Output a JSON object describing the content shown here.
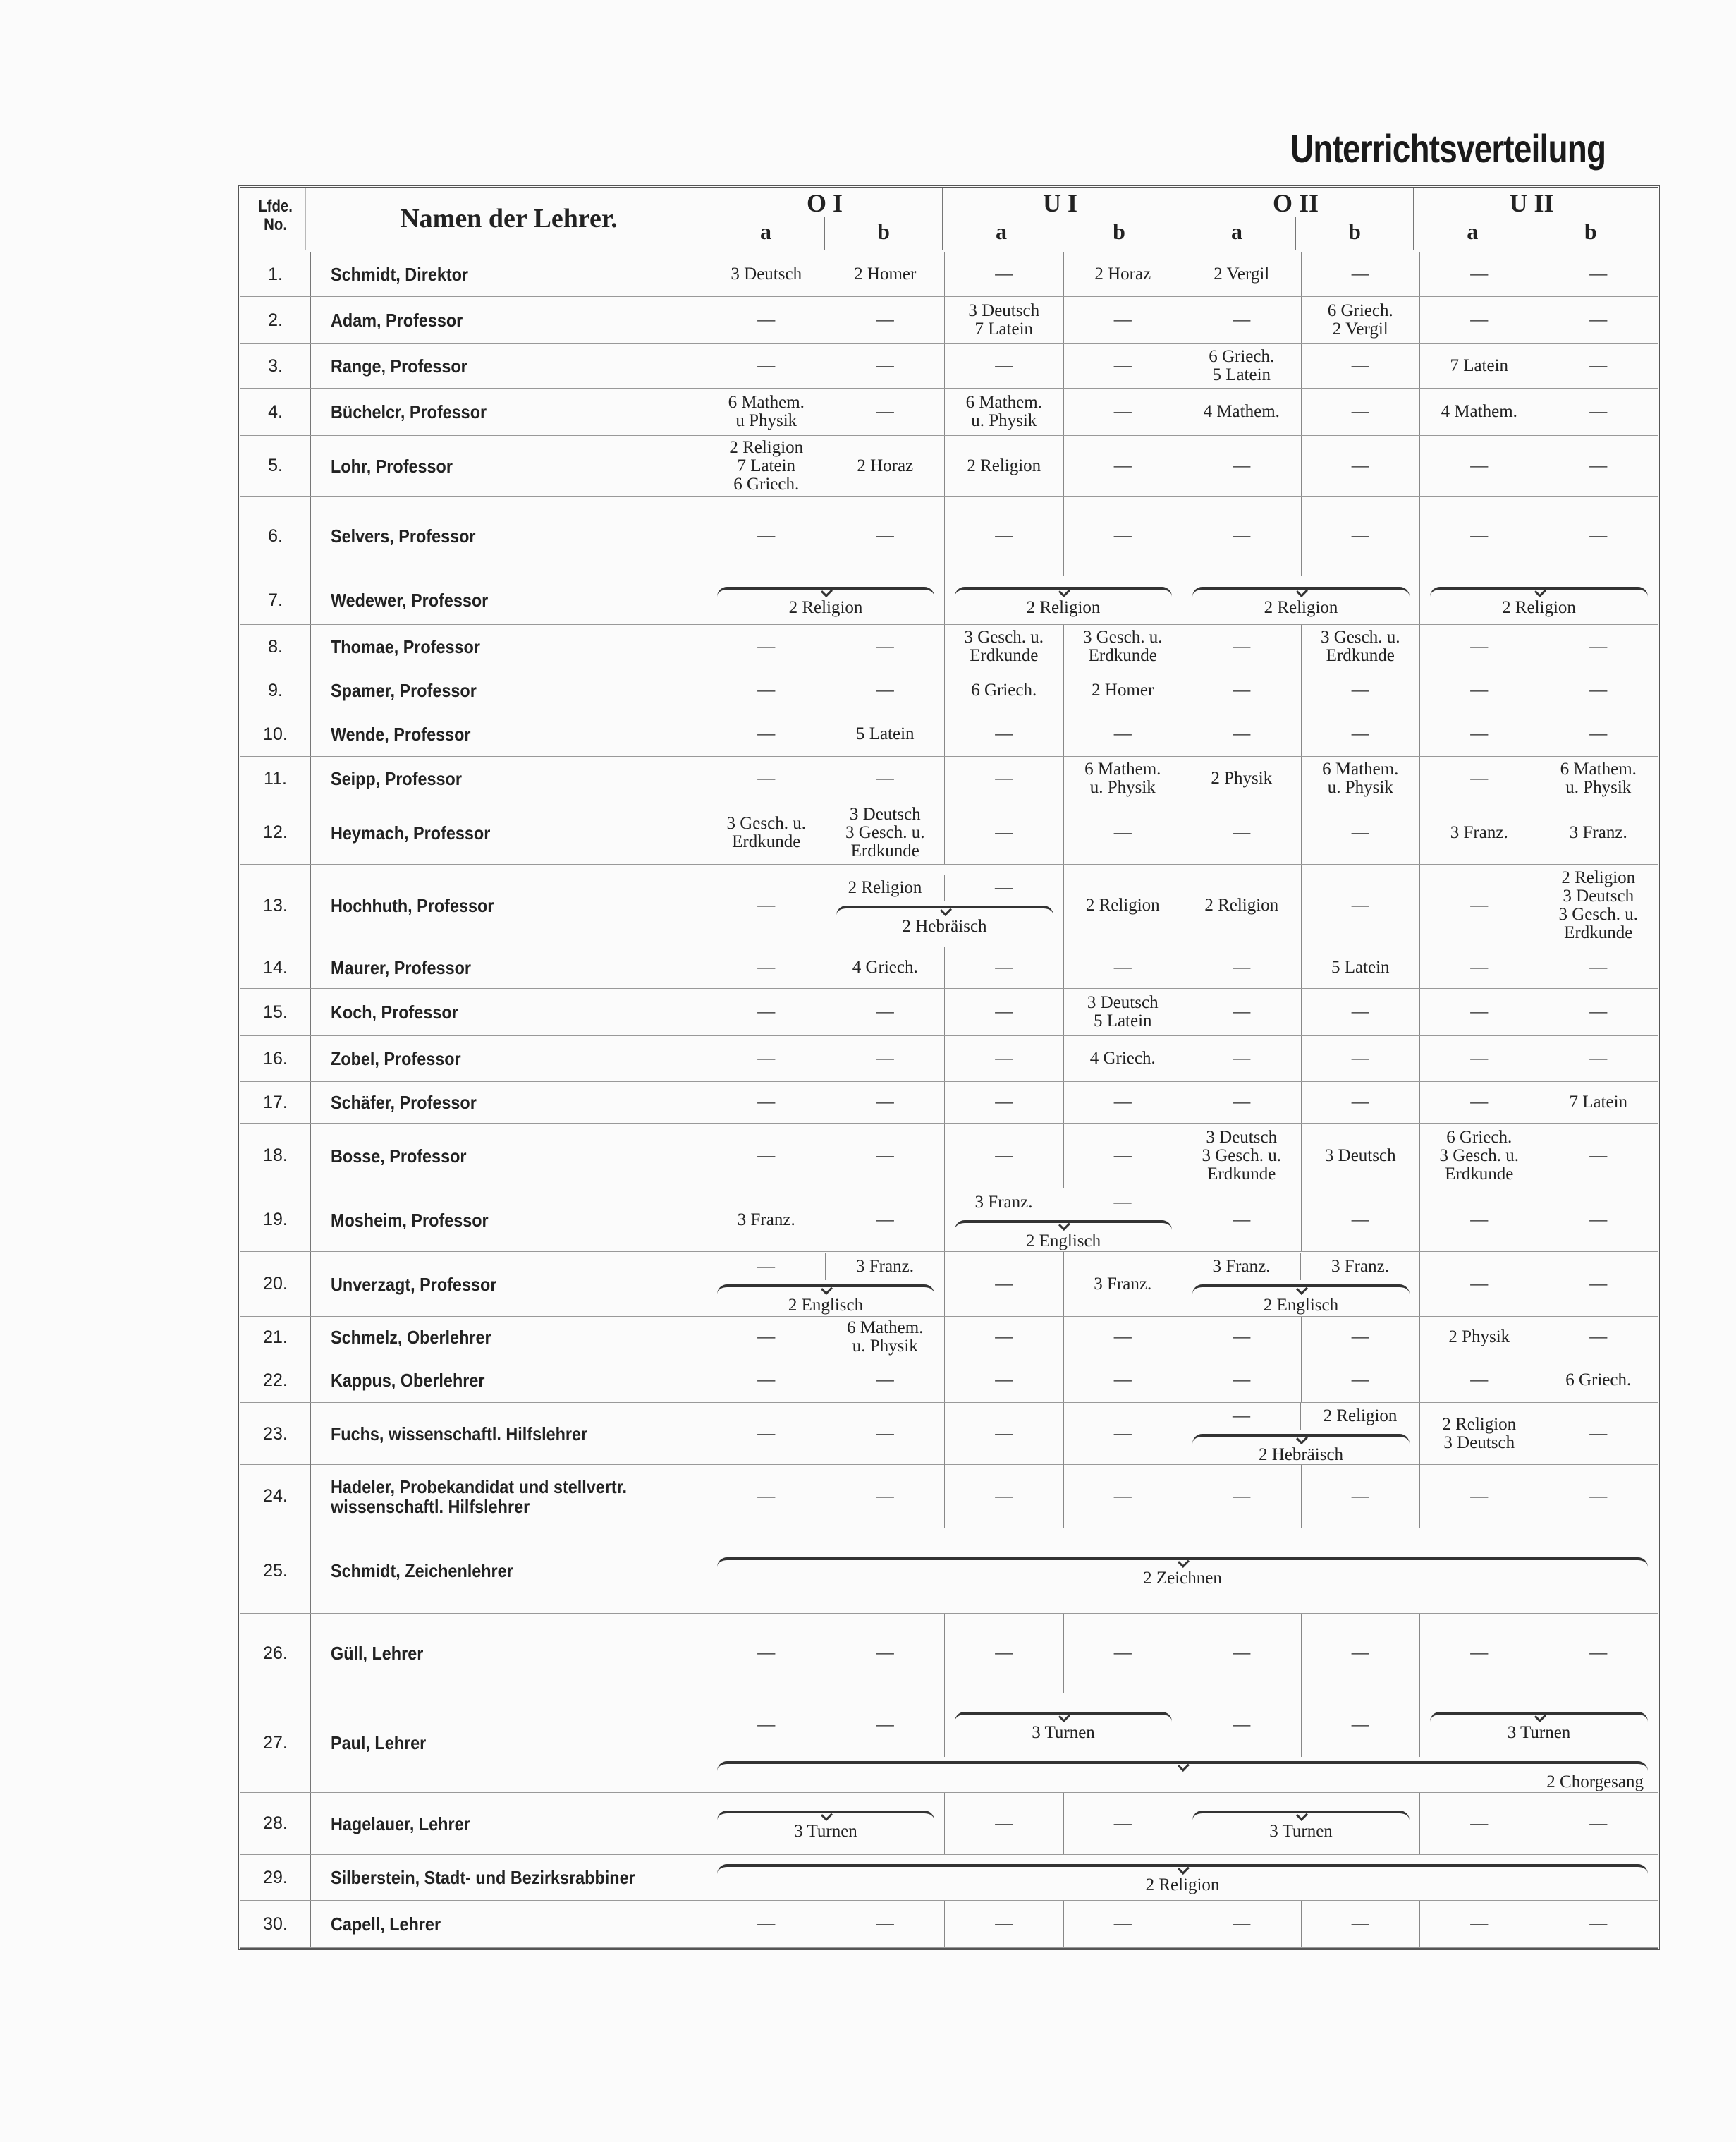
{
  "title": "Unterrichtsverteilung",
  "header": {
    "no": "Lfde.\nNo.",
    "name": "Namen der Lehrer.",
    "groups": [
      {
        "name": "O I",
        "subs": [
          "a",
          "b"
        ]
      },
      {
        "name": "U I",
        "subs": [
          "a",
          "b"
        ]
      },
      {
        "name": "O II",
        "subs": [
          "a",
          "b"
        ]
      },
      {
        "name": "U II",
        "subs": [
          "a",
          "b"
        ]
      }
    ]
  },
  "rows": [
    {
      "no": "1.",
      "name": "Schmidt, Direktor",
      "segs": [
        {
          "t": "3 Deutsch"
        },
        {
          "t": "2 Homer"
        },
        {
          "t": "—"
        },
        {
          "t": "2 Horaz"
        },
        {
          "t": "2 Vergil"
        },
        {
          "t": "—"
        },
        {
          "t": "—"
        },
        {
          "t": "—"
        }
      ]
    },
    {
      "no": "2.",
      "name": "Adam, Professor",
      "segs": [
        {
          "t": "—"
        },
        {
          "t": "—"
        },
        {
          "t": "3 Deutsch\n7 Latein"
        },
        {
          "t": "—"
        },
        {
          "t": "—"
        },
        {
          "t": "6 Griech.\n2 Vergil"
        },
        {
          "t": "—"
        },
        {
          "t": "—"
        }
      ]
    },
    {
      "no": "3.",
      "name": "Range, Professor",
      "segs": [
        {
          "t": "—"
        },
        {
          "t": "—"
        },
        {
          "t": "—"
        },
        {
          "t": "—"
        },
        {
          "t": "6 Griech.\n5 Latein"
        },
        {
          "t": "—"
        },
        {
          "t": "7 Latein"
        },
        {
          "t": "—"
        }
      ]
    },
    {
      "no": "4.",
      "name": "Büchelcr, Professor",
      "segs": [
        {
          "t": "6 Mathem.\nu Physik"
        },
        {
          "t": "—"
        },
        {
          "t": "6 Mathem.\nu. Physik"
        },
        {
          "t": "—"
        },
        {
          "t": "4 Mathem."
        },
        {
          "t": "—"
        },
        {
          "t": "4 Mathem."
        },
        {
          "t": "—"
        }
      ]
    },
    {
      "no": "5.",
      "name": "Lohr, Professor",
      "segs": [
        {
          "t": "2 Religion\n7 Latein\n6 Griech."
        },
        {
          "t": "2 Horaz"
        },
        {
          "t": "2 Religion"
        },
        {
          "t": "—"
        },
        {
          "t": "—"
        },
        {
          "t": "—"
        },
        {
          "t": "—"
        },
        {
          "t": "—"
        }
      ]
    },
    {
      "no": "6.",
      "name": "Selvers, Professor",
      "segs": [
        {
          "t": "—"
        },
        {
          "t": "—"
        },
        {
          "t": "—"
        },
        {
          "t": "—"
        },
        {
          "t": "—"
        },
        {
          "t": "—"
        },
        {
          "t": "—"
        },
        {
          "t": "—"
        }
      ]
    },
    {
      "no": "7.",
      "name": "Wedewer, Professor",
      "segs": [
        {
          "cols": 2,
          "brace": "2 Religion"
        },
        {
          "cols": 2,
          "brace": "2 Religion"
        },
        {
          "cols": 2,
          "brace": "2 Religion"
        },
        {
          "cols": 2,
          "brace": "2 Religion"
        }
      ]
    },
    {
      "no": "8.",
      "name": "Thomae, Professor",
      "segs": [
        {
          "t": "—"
        },
        {
          "t": "—"
        },
        {
          "t": "3 Gesch. u.\nErdkunde"
        },
        {
          "t": "3 Gesch. u.\nErdkunde"
        },
        {
          "t": "—"
        },
        {
          "t": "3 Gesch. u.\nErdkunde"
        },
        {
          "t": "—"
        },
        {
          "t": "—"
        }
      ]
    },
    {
      "no": "9.",
      "name": "Spamer, Professor",
      "segs": [
        {
          "t": "—"
        },
        {
          "t": "—"
        },
        {
          "t": "6 Griech."
        },
        {
          "t": "2 Homer"
        },
        {
          "t": "—"
        },
        {
          "t": "—"
        },
        {
          "t": "—"
        },
        {
          "t": "—"
        }
      ]
    },
    {
      "no": "10.",
      "name": "Wende, Professor",
      "segs": [
        {
          "t": "—"
        },
        {
          "t": "5 Latein"
        },
        {
          "t": "—"
        },
        {
          "t": "—"
        },
        {
          "t": "—"
        },
        {
          "t": "—"
        },
        {
          "t": "—"
        },
        {
          "t": "—"
        }
      ]
    },
    {
      "no": "11.",
      "name": "Seipp, Professor",
      "segs": [
        {
          "t": "—"
        },
        {
          "t": "—"
        },
        {
          "t": "—"
        },
        {
          "t": "6 Mathem.\nu. Physik"
        },
        {
          "t": "2 Physik"
        },
        {
          "t": "6 Mathem.\nu. Physik"
        },
        {
          "t": "—"
        },
        {
          "t": "6 Mathem.\nu. Physik"
        }
      ]
    },
    {
      "no": "12.",
      "name": "Heymach, Professor",
      "segs": [
        {
          "t": "3 Gesch. u.\nErdkunde"
        },
        {
          "t": "3 Deutsch\n3 Gesch. u.\nErdkunde"
        },
        {
          "t": "—"
        },
        {
          "t": "—"
        },
        {
          "t": "—"
        },
        {
          "t": "—"
        },
        {
          "t": "3 Franz."
        },
        {
          "t": "3 Franz."
        }
      ]
    },
    {
      "no": "13.",
      "name": "Hochhuth, Professor",
      "segs": [
        {
          "t": "—"
        },
        {
          "cols": 2,
          "upper": [
            "2 Religion",
            "—"
          ],
          "brace": "2 Hebräisch"
        },
        {
          "t": "2 Religion"
        },
        {
          "t": "2 Religion"
        },
        {
          "t": "—"
        },
        {
          "t": "—"
        },
        {
          "t": "2 Religion\n3 Deutsch\n3 Gesch. u.\nErdkunde"
        }
      ]
    },
    {
      "no": "14.",
      "name": "Maurer, Professor",
      "segs": [
        {
          "t": "—"
        },
        {
          "t": "4 Griech."
        },
        {
          "t": "—"
        },
        {
          "t": "—"
        },
        {
          "t": "—"
        },
        {
          "t": "5 Latein"
        },
        {
          "t": "—"
        },
        {
          "t": "—"
        }
      ]
    },
    {
      "no": "15.",
      "name": "Koch, Professor",
      "segs": [
        {
          "t": "—"
        },
        {
          "t": "—"
        },
        {
          "t": "—"
        },
        {
          "t": "3 Deutsch\n5 Latein"
        },
        {
          "t": "—"
        },
        {
          "t": "—"
        },
        {
          "t": "—"
        },
        {
          "t": "—"
        }
      ]
    },
    {
      "no": "16.",
      "name": "Zobel, Professor",
      "segs": [
        {
          "t": "—"
        },
        {
          "t": "—"
        },
        {
          "t": "—"
        },
        {
          "t": "4 Griech."
        },
        {
          "t": "—"
        },
        {
          "t": "—"
        },
        {
          "t": "—"
        },
        {
          "t": "—"
        }
      ]
    },
    {
      "no": "17.",
      "name": "Schäfer, Professor",
      "segs": [
        {
          "t": "—"
        },
        {
          "t": "—"
        },
        {
          "t": "—"
        },
        {
          "t": "—"
        },
        {
          "t": "—"
        },
        {
          "t": "—"
        },
        {
          "t": "—"
        },
        {
          "t": "7 Latein"
        }
      ]
    },
    {
      "no": "18.",
      "name": "Bosse, Professor",
      "segs": [
        {
          "t": "—"
        },
        {
          "t": "—"
        },
        {
          "t": "—"
        },
        {
          "t": "—"
        },
        {
          "t": "3 Deutsch\n3 Gesch. u.\nErdkunde"
        },
        {
          "t": "3 Deutsch"
        },
        {
          "t": "6 Griech.\n3 Gesch. u.\nErdkunde"
        },
        {
          "t": "—"
        }
      ]
    },
    {
      "no": "19.",
      "name": "Mosheim, Professor",
      "segs": [
        {
          "t": "3 Franz."
        },
        {
          "t": "—"
        },
        {
          "cols": 2,
          "upper": [
            "3 Franz.",
            "—"
          ],
          "brace": "2 Englisch"
        },
        {
          "t": "—"
        },
        {
          "t": "—"
        },
        {
          "t": "—"
        },
        {
          "t": "—"
        }
      ]
    },
    {
      "no": "20.",
      "name": "Unverzagt, Professor",
      "segs": [
        {
          "cols": 2,
          "upper": [
            "—",
            "3 Franz."
          ],
          "brace": "2 Englisch"
        },
        {
          "t": "—"
        },
        {
          "t": "3 Franz."
        },
        {
          "cols": 2,
          "upper": [
            "3 Franz.",
            "3 Franz."
          ],
          "brace": "2 Englisch"
        },
        {
          "t": "—"
        },
        {
          "t": "—"
        }
      ]
    },
    {
      "no": "21.",
      "name": "Schmelz, Oberlehrer",
      "segs": [
        {
          "t": "—"
        },
        {
          "t": "6 Mathem.\nu. Physik"
        },
        {
          "t": "—"
        },
        {
          "t": "—"
        },
        {
          "t": "—"
        },
        {
          "t": "—"
        },
        {
          "t": "2 Physik"
        },
        {
          "t": "—"
        }
      ]
    },
    {
      "no": "22.",
      "name": "Kappus, Oberlehrer",
      "segs": [
        {
          "t": "—"
        },
        {
          "t": "—"
        },
        {
          "t": "—"
        },
        {
          "t": "—"
        },
        {
          "t": "—"
        },
        {
          "t": "—"
        },
        {
          "t": "—"
        },
        {
          "t": "6 Griech."
        }
      ]
    },
    {
      "no": "23.",
      "name": "Fuchs, wissenschaftl. Hilfslehrer",
      "segs": [
        {
          "t": "—"
        },
        {
          "t": "—"
        },
        {
          "t": "—"
        },
        {
          "t": "—"
        },
        {
          "cols": 2,
          "upper": [
            "—",
            "2 Religion"
          ],
          "brace": "2 Hebräisch"
        },
        {
          "t": "2 Religion\n3 Deutsch"
        },
        {
          "t": "—"
        }
      ]
    },
    {
      "no": "24.",
      "name": "Hadeler, Probekandidat und stellvertr.\nwissenschaftl. Hilfslehrer",
      "segs": [
        {
          "t": "—"
        },
        {
          "t": "—"
        },
        {
          "t": "—"
        },
        {
          "t": "—"
        },
        {
          "t": "—"
        },
        {
          "t": "—"
        },
        {
          "t": "—"
        },
        {
          "t": "—"
        }
      ]
    },
    {
      "no": "25.",
      "name": "Schmidt, Zeichenlehrer",
      "segs": [
        {
          "cols": 8,
          "brace": "2 Zeichnen"
        }
      ]
    },
    {
      "no": "26.",
      "name": "Güll, Lehrer",
      "segs": [
        {
          "t": "—"
        },
        {
          "t": "—"
        },
        {
          "t": "—"
        },
        {
          "t": "—"
        },
        {
          "t": "—"
        },
        {
          "t": "—"
        },
        {
          "t": "—"
        },
        {
          "t": "—"
        }
      ]
    },
    {
      "no": "27.",
      "name": "Paul, Lehrer",
      "segs": [
        {
          "t": "—"
        },
        {
          "t": "—"
        },
        {
          "cols": 2,
          "brace": "3 Turnen"
        },
        {
          "t": "—"
        },
        {
          "t": "—"
        },
        {
          "cols": 2,
          "brace": "3 Turnen"
        }
      ],
      "lower": "2 Chorgesang"
    },
    {
      "no": "28.",
      "name": "Hagelauer, Lehrer",
      "segs": [
        {
          "cols": 2,
          "brace": "3 Turnen"
        },
        {
          "t": "—"
        },
        {
          "t": "—"
        },
        {
          "cols": 2,
          "brace": "3 Turnen"
        },
        {
          "t": "—"
        },
        {
          "t": "—"
        }
      ]
    },
    {
      "no": "29.",
      "name": "Silberstein, Stadt- und Bezirksrabbiner",
      "segs": [
        {
          "cols": 8,
          "brace": "2 Religion"
        }
      ]
    },
    {
      "no": "30.",
      "name": "Capell, Lehrer",
      "segs": [
        {
          "t": "—"
        },
        {
          "t": "—"
        },
        {
          "t": "—"
        },
        {
          "t": "—"
        },
        {
          "t": "—"
        },
        {
          "t": "—"
        },
        {
          "t": "—"
        },
        {
          "t": "—"
        }
      ]
    }
  ]
}
